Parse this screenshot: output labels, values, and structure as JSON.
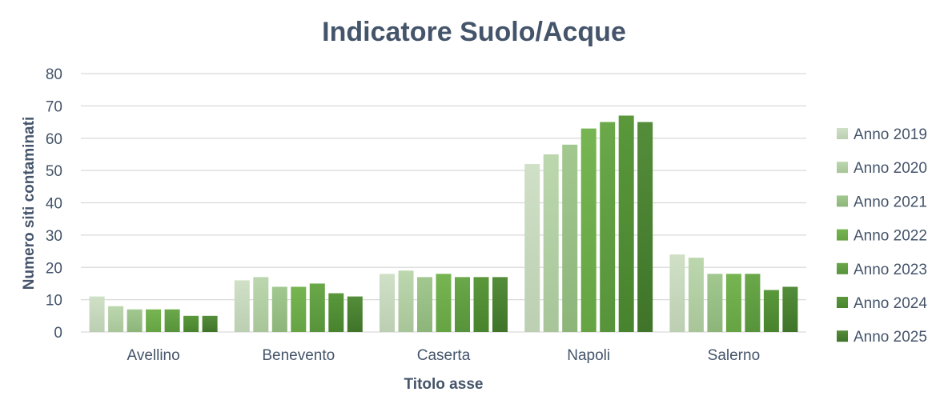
{
  "chart_data": {
    "type": "bar",
    "title": "Indicatore Suolo/Acque",
    "xlabel": "Titolo asse",
    "ylabel": "Numero siti contaminati",
    "ylim": [
      0,
      80
    ],
    "yticks": [
      0,
      10,
      20,
      30,
      40,
      50,
      60,
      70,
      80
    ],
    "grid": true,
    "legend_position": "right",
    "categories": [
      "Avellino",
      "Benevento",
      "Caserta",
      "Napoli",
      "Salerno"
    ],
    "series": [
      {
        "name": "Anno 2019",
        "color": "#cfe0c6",
        "color_dark": "#bccfb2",
        "values": [
          11,
          16,
          18,
          52,
          24
        ]
      },
      {
        "name": "Anno 2020",
        "color": "#bcd7ae",
        "color_dark": "#a8c599",
        "values": [
          8,
          17,
          19,
          55,
          23
        ]
      },
      {
        "name": "Anno 2021",
        "color": "#a2c890",
        "color_dark": "#8db57a",
        "values": [
          7,
          14,
          17,
          58,
          18
        ]
      },
      {
        "name": "Anno 2022",
        "color": "#77b552",
        "color_dark": "#66a343",
        "values": [
          7,
          14,
          18,
          63,
          18
        ]
      },
      {
        "name": "Anno 2023",
        "color": "#6aa84a",
        "color_dark": "#57933a",
        "values": [
          7,
          15,
          17,
          65,
          18
        ]
      },
      {
        "name": "Anno 2024",
        "color": "#5a983b",
        "color_dark": "#48832d",
        "values": [
          5,
          12,
          17,
          67,
          13
        ]
      },
      {
        "name": "Anno 2025",
        "color": "#548d3a",
        "color_dark": "#3f7429",
        "values": [
          5,
          11,
          17,
          65,
          14
        ]
      }
    ]
  }
}
